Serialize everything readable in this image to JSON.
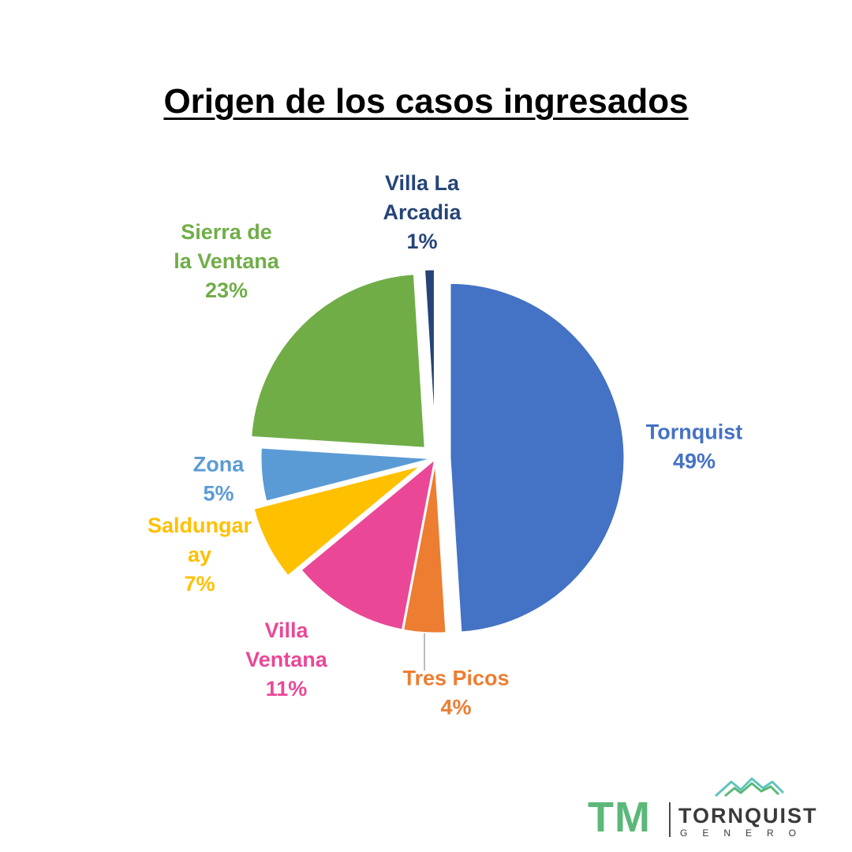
{
  "chart_data": {
    "type": "pie",
    "title": "Origen de los casos ingresados",
    "slices": [
      {
        "name": "Tornquist",
        "value": 49,
        "label_lines": [
          "Tornquist",
          "49%"
        ],
        "color": "#4472c4",
        "exploded": true
      },
      {
        "name": "Tres Picos",
        "value": 4,
        "label_lines": [
          "Tres Picos",
          "4%"
        ],
        "color": "#ed7d31",
        "exploded": false
      },
      {
        "name": "Villa Ventana",
        "value": 11,
        "label_lines": [
          "Villa",
          "Ventana",
          "11%"
        ],
        "color": "#ea4897",
        "exploded": false
      },
      {
        "name": "Saldungaray",
        "value": 7,
        "label_lines": [
          "Saldungar",
          "ay",
          "7%"
        ],
        "color": "#ffc000",
        "exploded": true
      },
      {
        "name": "Zona",
        "value": 5,
        "label_lines": [
          "Zona",
          "5%"
        ],
        "color": "#5b9bd5",
        "exploded": false
      },
      {
        "name": "Sierra de la Ventana",
        "value": 23,
        "label_lines": [
          "Sierra de",
          "la Ventana",
          "23%"
        ],
        "color": "#70ad47",
        "exploded": true
      },
      {
        "name": "Villa La Arcadia",
        "value": 1,
        "label_lines": [
          "Villa La",
          "Arcadia",
          "1%"
        ],
        "color": "#264478",
        "exploded": true
      }
    ],
    "legend": "none",
    "data_labels": "outside"
  },
  "logo": {
    "mark": "TM",
    "name": "TORNQUIST",
    "subtitle": "GENERO",
    "colors": {
      "green": "#5bb878",
      "teal": "#5ec4c0",
      "dark": "#3a3a3a"
    }
  }
}
